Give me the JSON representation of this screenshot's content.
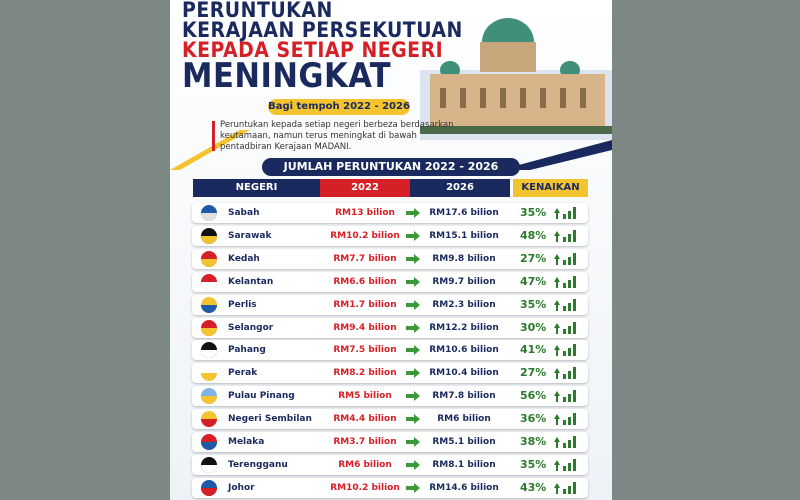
{
  "header": {
    "title_lines": [
      "PERUNTUKAN",
      "KERAJAAN PERSEKUTUAN",
      "KEPADA SETIAP NEGERI",
      "MENINGKAT"
    ],
    "period": "Bagi tempoh 2022 - 2026",
    "description_lines": [
      "Peruntukan kepada setiap negeri berbeza berdasarkan",
      "keutamaan, namun terus meningkat di bawah",
      "pentadbiran Kerajaan MADANI."
    ]
  },
  "table": {
    "title": "JUMLAH PERUNTUKAN 2022 - 2026",
    "columns": [
      "NEGERI",
      "2022",
      "2026",
      "KENAIKAN"
    ],
    "rows": [
      [
        "Sabah",
        "RM13 bilion",
        "RM17.6 bilion",
        "35%"
      ],
      [
        "Sarawak",
        "RM10.2 bilion",
        "RM15.1 bilion",
        "48%"
      ],
      [
        "Kedah",
        "RM7.7 bilion",
        "RM9.8 bilion",
        "27%"
      ],
      [
        "Kelantan",
        "RM6.6 bilion",
        "RM9.7 bilion",
        "47%"
      ],
      [
        "Perlis",
        "RM1.7 bilion",
        "RM2.3 bilion",
        "35%"
      ],
      [
        "Selangor",
        "RM9.4 bilion",
        "RM12.2 bilion",
        "30%"
      ],
      [
        "Pahang",
        "RM7.5 bilion",
        "RM10.6 bilion",
        "41%"
      ],
      [
        "Perak",
        "RM8.2 bilion",
        "RM10.4 bilion",
        "27%"
      ],
      [
        "Pulau Pinang",
        "RM5 bilion",
        "RM7.8 bilion",
        "56%"
      ],
      [
        "Negeri Sembilan",
        "RM4.4 bilion",
        "RM6 bilion",
        "36%"
      ],
      [
        "Melaka",
        "RM3.7 bilion",
        "RM5.1 bilion",
        "38%"
      ],
      [
        "Terengganu",
        "RM6 bilion",
        "RM8.1 bilion",
        "35%"
      ],
      [
        "Johor",
        "RM10.2 bilion",
        "RM14.6 bilion",
        "43%"
      ]
    ]
  }
}
